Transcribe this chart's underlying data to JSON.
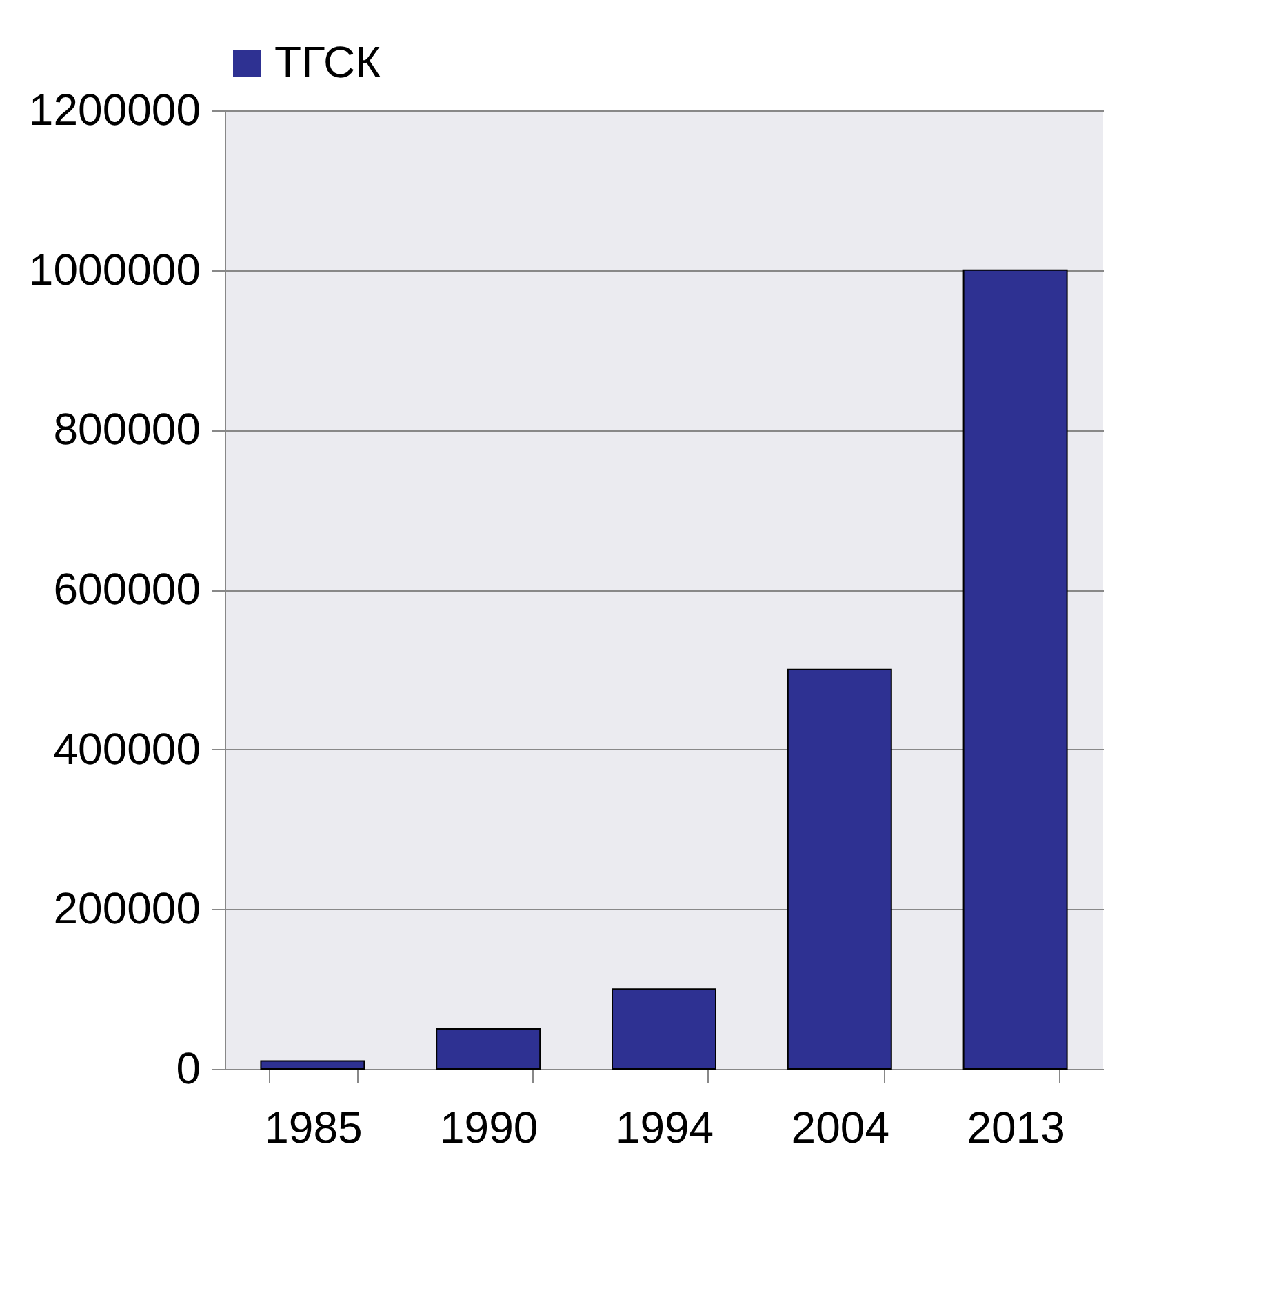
{
  "chart_data": {
    "type": "bar",
    "categories": [
      "1985",
      "1990",
      "1994",
      "2004",
      "2013"
    ],
    "series": [
      {
        "name": "ТГСК",
        "color": "#2e3192",
        "values": [
          10000,
          50000,
          100000,
          500000,
          1000000
        ]
      }
    ],
    "ylim": [
      0,
      1200000
    ],
    "yticks": [
      0,
      200000,
      400000,
      600000,
      800000,
      1000000,
      1200000
    ],
    "grid": "y",
    "legend": "top"
  }
}
